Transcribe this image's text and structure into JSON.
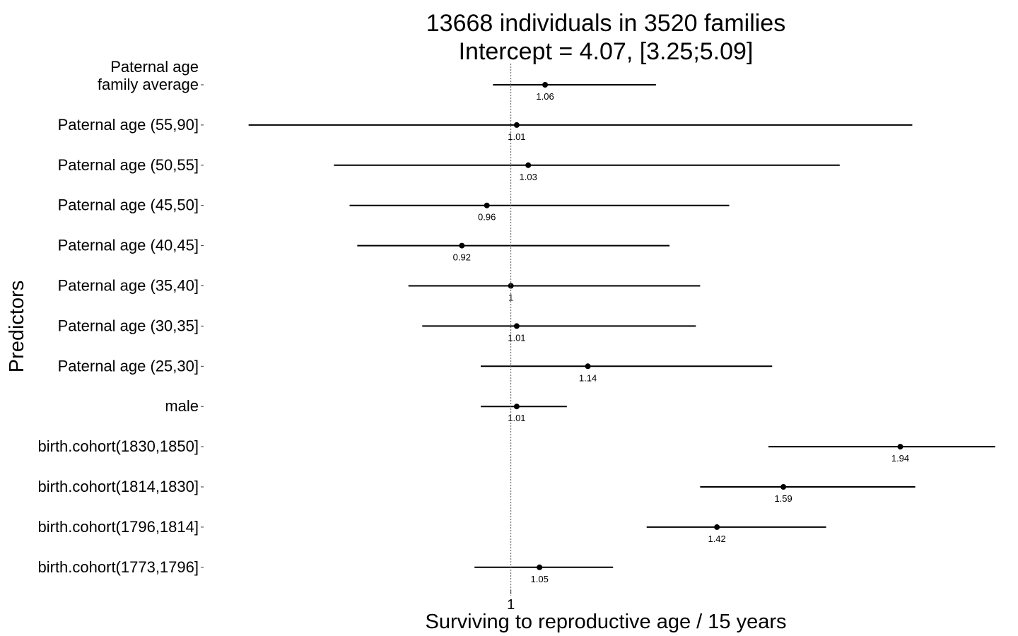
{
  "chart_data": {
    "type": "forest",
    "title": "13668 individuals in 3520 families",
    "subtitle": "Intercept = 4.07, [3.25;5.09]",
    "xlabel": "Surviving to reproductive age / 15 years",
    "ylabel": "Predictors",
    "x_scale": "log",
    "xlim": [
      0.6,
      2.3
    ],
    "reference_line": 1,
    "x_ticks": [
      1
    ],
    "x_tick_labels": [
      "1"
    ],
    "grid": false,
    "rows": [
      {
        "label": [
          "Paternal age",
          "family average"
        ],
        "estimate": 1.06,
        "estimate_label": "1.06",
        "ci_low": 0.97,
        "ci_high": 1.28
      },
      {
        "label": [
          "Paternal age (55,90]"
        ],
        "estimate": 1.01,
        "estimate_label": "1.01",
        "ci_low": 0.64,
        "ci_high": 1.98
      },
      {
        "label": [
          "Paternal age (50,55]"
        ],
        "estimate": 1.03,
        "estimate_label": "1.03",
        "ci_low": 0.74,
        "ci_high": 1.75
      },
      {
        "label": [
          "Paternal age (45,50]"
        ],
        "estimate": 0.96,
        "estimate_label": "0.96",
        "ci_low": 0.76,
        "ci_high": 1.45
      },
      {
        "label": [
          "Paternal age (40,45]"
        ],
        "estimate": 0.92,
        "estimate_label": "0.92",
        "ci_low": 0.77,
        "ci_high": 1.31
      },
      {
        "label": [
          "Paternal age (35,40]"
        ],
        "estimate": 1.0,
        "estimate_label": "1",
        "ci_low": 0.84,
        "ci_high": 1.38
      },
      {
        "label": [
          "Paternal age (30,35]"
        ],
        "estimate": 1.01,
        "estimate_label": "1.01",
        "ci_low": 0.86,
        "ci_high": 1.37
      },
      {
        "label": [
          "Paternal age (25,30]"
        ],
        "estimate": 1.14,
        "estimate_label": "1.14",
        "ci_low": 0.95,
        "ci_high": 1.56
      },
      {
        "label": [
          "male"
        ],
        "estimate": 1.01,
        "estimate_label": "1.01",
        "ci_low": 0.95,
        "ci_high": 1.1
      },
      {
        "label": [
          "birth.cohort(1830,1850]"
        ],
        "estimate": 1.94,
        "estimate_label": "1.94",
        "ci_low": 1.55,
        "ci_high": 2.28
      },
      {
        "label": [
          "birth.cohort(1814,1830]"
        ],
        "estimate": 1.59,
        "estimate_label": "1.59",
        "ci_low": 1.38,
        "ci_high": 1.99
      },
      {
        "label": [
          "birth.cohort(1796,1814]"
        ],
        "estimate": 1.42,
        "estimate_label": "1.42",
        "ci_low": 1.26,
        "ci_high": 1.71
      },
      {
        "label": [
          "birth.cohort(1773,1796]"
        ],
        "estimate": 1.05,
        "estimate_label": "1.05",
        "ci_low": 0.94,
        "ci_high": 1.19
      }
    ]
  }
}
